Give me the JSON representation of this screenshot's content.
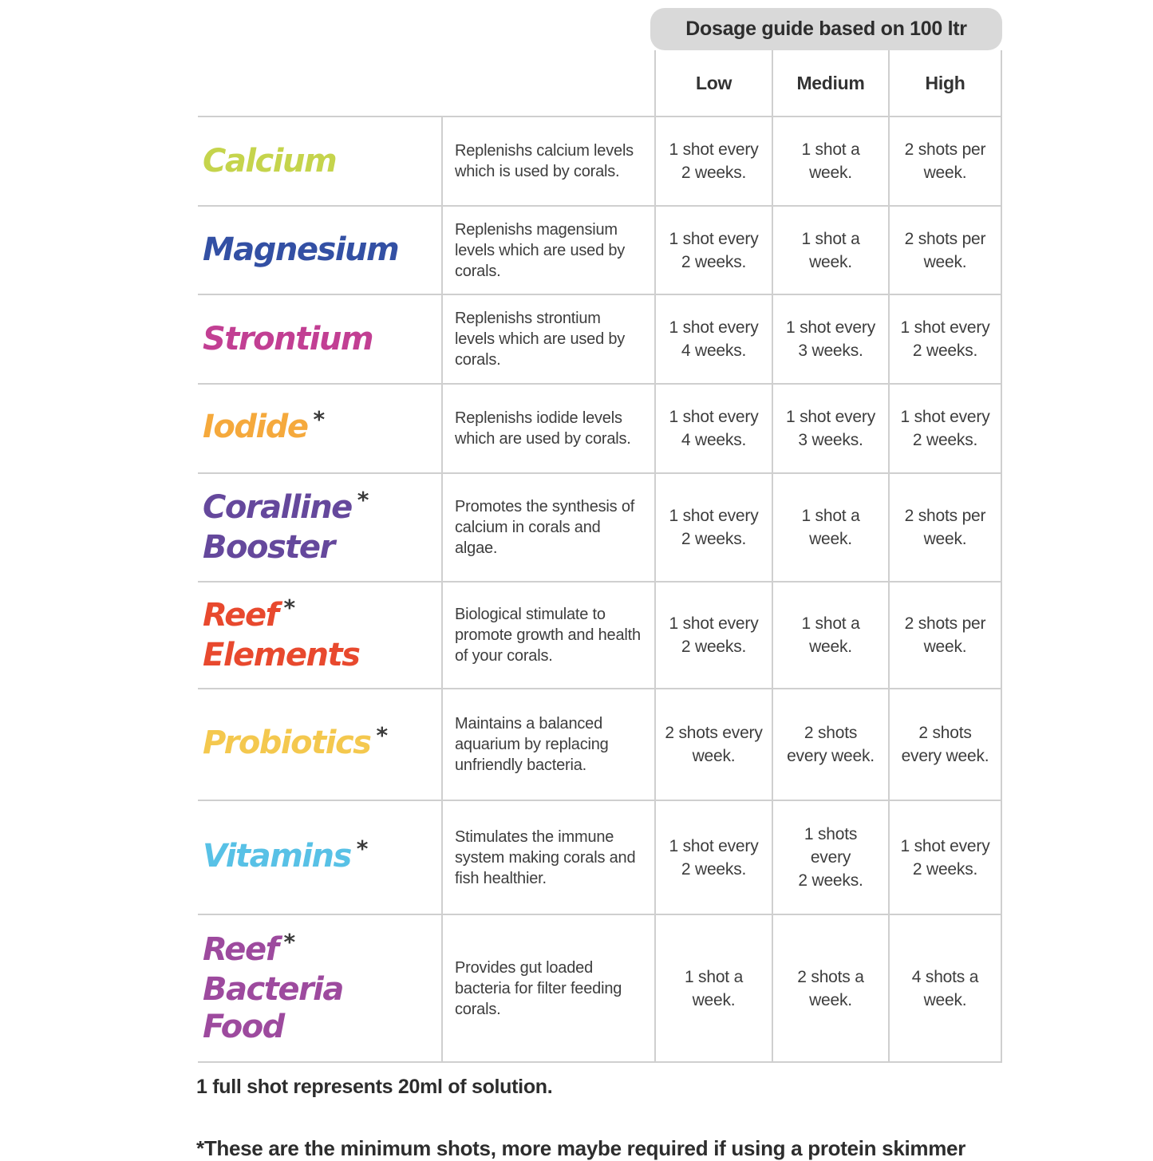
{
  "table": {
    "dosage_header": "Dosage guide based on 100 ltr",
    "level_columns": [
      "Low",
      "Medium",
      "High"
    ],
    "rows": [
      {
        "name_lines": [
          {
            "text": "Calcium",
            "asterisk": false
          }
        ],
        "name_color": "#c5d44c",
        "description": "Replenishs calcium levels which is used by corals.",
        "dosages": [
          "1 shot every\n2 weeks.",
          "1 shot a\nweek.",
          "2 shots per\nweek."
        ]
      },
      {
        "name_lines": [
          {
            "text": "Magnesium",
            "asterisk": false
          }
        ],
        "name_color": "#3350a4",
        "description": "Replenishs magensium levels which are used by corals.",
        "dosages": [
          "1 shot every\n2 weeks.",
          "1 shot a\nweek.",
          "2 shots per\nweek."
        ]
      },
      {
        "name_lines": [
          {
            "text": "Strontium",
            "asterisk": false
          }
        ],
        "name_color": "#c23f93",
        "description": "Replenishs strontium levels which are used by corals.",
        "dosages": [
          "1 shot every\n4 weeks.",
          "1 shot every\n3 weeks.",
          "1 shot every\n2 weeks."
        ]
      },
      {
        "name_lines": [
          {
            "text": "Iodide",
            "asterisk": true
          }
        ],
        "name_color": "#f5a93c",
        "description": "Replenishs iodide levels which are used by corals.",
        "dosages": [
          "1 shot every\n4 weeks.",
          "1 shot every\n3 weeks.",
          "1 shot every\n2 weeks."
        ]
      },
      {
        "name_lines": [
          {
            "text": "Coralline",
            "asterisk": true
          },
          {
            "text": "Booster",
            "asterisk": false
          }
        ],
        "name_color": "#65489c",
        "description": "Promotes the synthesis of calcium in corals and algae.",
        "dosages": [
          "1 shot every\n2 weeks.",
          "1 shot a\nweek.",
          "2 shots per\nweek."
        ]
      },
      {
        "name_lines": [
          {
            "text": "Reef",
            "asterisk": true
          },
          {
            "text": "Elements",
            "asterisk": false
          }
        ],
        "name_color": "#e8492e",
        "description": "Biological stimulate to promote growth and health of your corals.",
        "dosages": [
          "1 shot every\n2 weeks.",
          "1 shot a\nweek.",
          "2 shots per\nweek."
        ]
      },
      {
        "name_lines": [
          {
            "text": "Probiotics",
            "asterisk": true
          }
        ],
        "name_color": "#f4c84e",
        "description": "Maintains a balanced aquarium by replacing unfriendly bacteria.",
        "dosages": [
          "2 shots every\nweek.",
          "2 shots\nevery week.",
          "2 shots\nevery week."
        ]
      },
      {
        "name_lines": [
          {
            "text": "Vitamins",
            "asterisk": true
          }
        ],
        "name_color": "#58c1e6",
        "description": "Stimulates the immune system making corals and fish healthier.",
        "dosages": [
          "1 shot every\n2 weeks.",
          "1 shots\nevery\n2 weeks.",
          "1 shot every\n2 weeks."
        ]
      },
      {
        "name_lines": [
          {
            "text": "Reef",
            "asterisk": true
          },
          {
            "text": "Bacteria",
            "asterisk": false
          },
          {
            "text": "Food",
            "asterisk": false
          }
        ],
        "name_color": "#9d4a9e",
        "description": "Provides gut loaded bacteria for filter feeding corals.",
        "dosages": [
          "1 shot a\nweek.",
          "2 shots a\nweek.",
          "4 shots a\nweek."
        ]
      }
    ]
  },
  "footer": {
    "shot_note": "1 full shot represents 20ml of solution.",
    "minimum_note": "*These are the minimum shots, more maybe required if using a protein skimmer"
  },
  "colors": {
    "border": "#cfcfcf",
    "header_box_background": "#d9d9d9",
    "body_text": "#3d3d3d"
  }
}
